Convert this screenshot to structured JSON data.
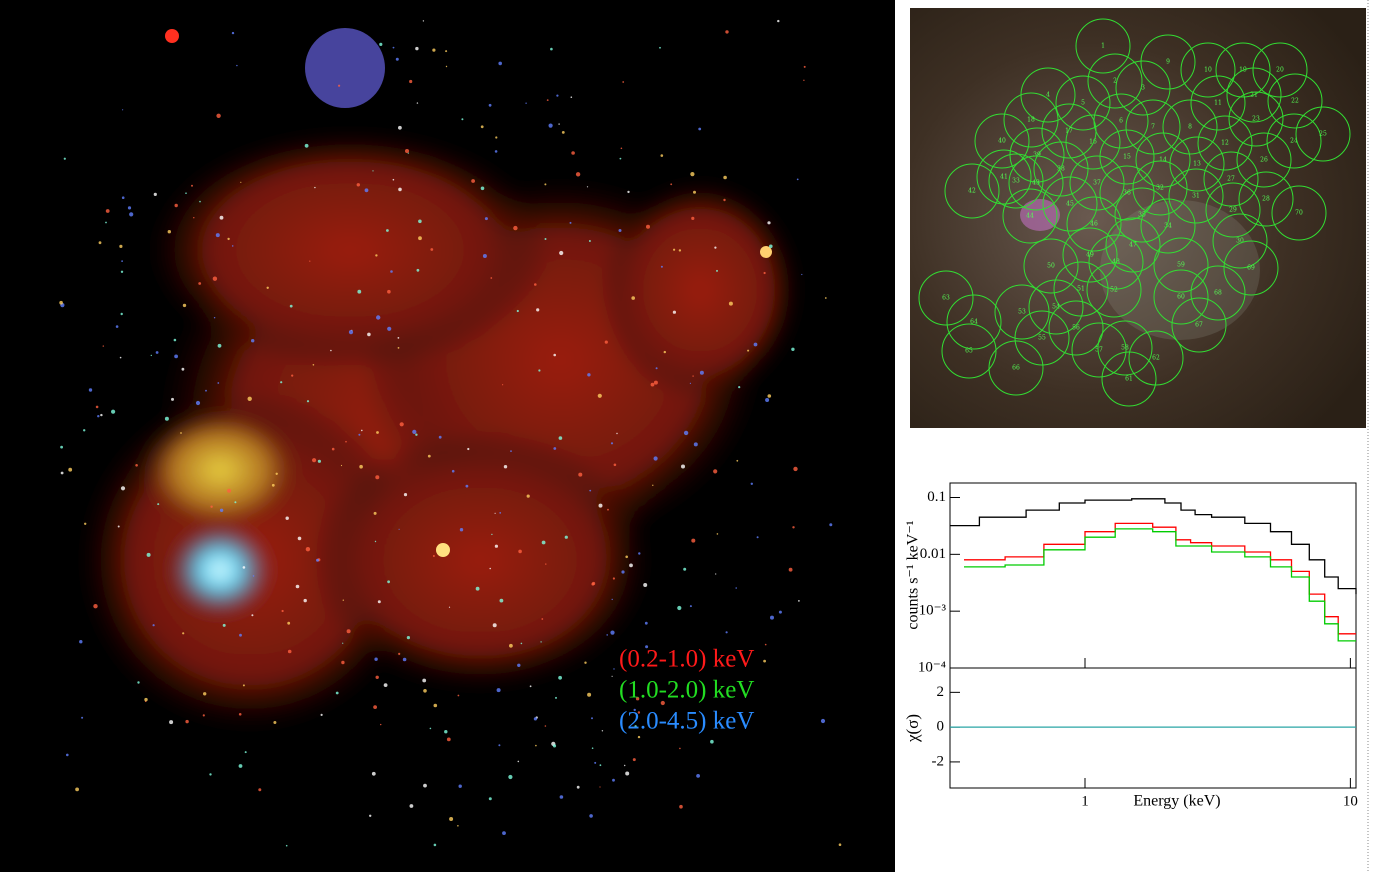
{
  "xray_image": {
    "legend": [
      "(0.2-1.0) keV",
      "(1.0-2.0) keV",
      "(2.0-4.5) keV"
    ],
    "legend_colors": [
      "#ff1a1a",
      "#22dd22",
      "#2a8cff"
    ]
  },
  "optical_image": {
    "regions": [
      "1",
      "2",
      "3",
      "4",
      "5",
      "6",
      "7",
      "8",
      "9",
      "10",
      "11",
      "12",
      "13",
      "14",
      "15",
      "16",
      "17",
      "18",
      "19",
      "20",
      "21",
      "22",
      "23",
      "24",
      "25",
      "26",
      "27",
      "28",
      "29",
      "30",
      "31",
      "32",
      "33",
      "34",
      "35",
      "36",
      "37",
      "38",
      "39",
      "40",
      "41",
      "42",
      "43",
      "44",
      "45",
      "46",
      "47",
      "48",
      "49",
      "50",
      "51",
      "52",
      "53",
      "54",
      "55",
      "56",
      "57",
      "58",
      "59",
      "60",
      "61",
      "62",
      "63",
      "64",
      "65",
      "66",
      "67",
      "68",
      "69",
      "70"
    ],
    "circle_color": "#33dd33"
  },
  "chart_data": {
    "type": "line",
    "step": true,
    "x_label": "Energy (keV)",
    "y_label": "counts s⁻¹ keV⁻¹",
    "residual_label": "χ(σ)",
    "xlog": true,
    "ylog": true,
    "xlim": [
      0.31,
      10.5
    ],
    "ylim": [
      0.0001,
      0.18
    ],
    "xticks": [
      1,
      10
    ],
    "yticks": [
      0.1,
      0.01,
      {
        "value": 0.001,
        "label": "10⁻³"
      },
      {
        "value": 0.0001,
        "label": "10⁻⁴"
      }
    ],
    "residual_ylim": [
      -3.5,
      3.4
    ],
    "residual_yticks": [
      2,
      0,
      -2
    ],
    "residual_reference": 0,
    "residual_reference_color": "#2aa6a6",
    "series": [
      {
        "color": "#000000",
        "x": [
          0.31,
          0.4,
          0.6,
          0.8,
          1,
          1.5,
          2,
          2.3,
          2.6,
          3,
          4,
          5,
          6,
          7,
          8,
          9,
          10.5
        ],
        "values": [
          0.032,
          0.045,
          0.06,
          0.08,
          0.09,
          0.095,
          0.08,
          0.06,
          0.05,
          0.045,
          0.035,
          0.025,
          0.015,
          0.008,
          0.004,
          0.0025,
          0.002
        ]
      },
      {
        "color": "#ff0000",
        "x": [
          0.35,
          0.5,
          0.7,
          1,
          1.3,
          1.8,
          2.2,
          2.5,
          3,
          4,
          5,
          6,
          7,
          8,
          9,
          10.5
        ],
        "values": [
          0.008,
          0.009,
          0.015,
          0.025,
          0.035,
          0.03,
          0.018,
          0.016,
          0.014,
          0.011,
          0.008,
          0.005,
          0.002,
          0.0008,
          0.0004,
          0.0004
        ]
      },
      {
        "color": "#00cc00",
        "x": [
          0.35,
          0.5,
          0.7,
          1,
          1.3,
          1.8,
          2.2,
          3,
          4,
          5,
          6,
          7,
          8,
          9,
          10.5
        ],
        "values": [
          0.006,
          0.0065,
          0.012,
          0.02,
          0.028,
          0.025,
          0.014,
          0.011,
          0.009,
          0.006,
          0.004,
          0.0015,
          0.0006,
          0.0003,
          0.0003
        ]
      }
    ]
  }
}
